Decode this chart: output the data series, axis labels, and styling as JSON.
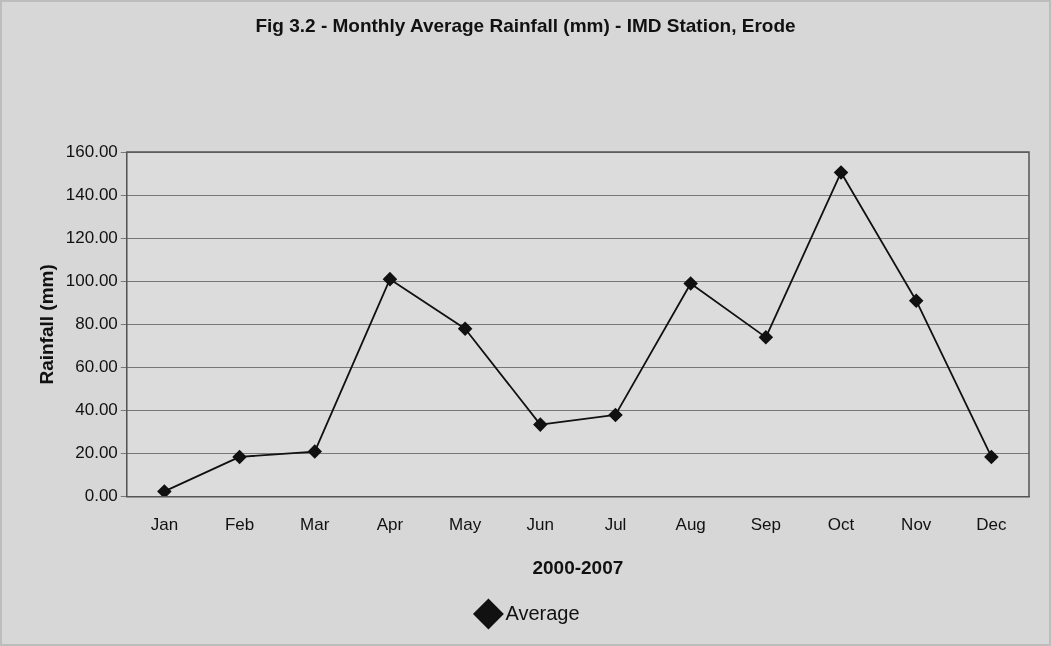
{
  "chart_data": {
    "type": "line",
    "title": "Fig 3.2 - Monthly Average Rainfall (mm) - IMD Station, Erode",
    "xlabel": "2000-2007",
    "ylabel": "Rainfall (mm)",
    "categories": [
      "Jan",
      "Feb",
      "Mar",
      "Apr",
      "May",
      "Jun",
      "Jul",
      "Aug",
      "Sep",
      "Oct",
      "Nov",
      "Dec"
    ],
    "series": [
      {
        "name": "Average",
        "color": "#111111",
        "values": [
          2.5,
          18.5,
          21,
          101,
          78,
          33.5,
          38,
          99,
          74,
          150.5,
          91,
          18.5
        ]
      }
    ],
    "ylim": [
      0,
      160
    ],
    "yticks": [
      {
        "value": 0,
        "label": "0.00"
      },
      {
        "value": 20,
        "label": "20.00"
      },
      {
        "value": 40,
        "label": "40.00"
      },
      {
        "value": 60,
        "label": "60.00"
      },
      {
        "value": 80,
        "label": "80.00"
      },
      {
        "value": 100,
        "label": "100.00"
      },
      {
        "value": 120,
        "label": "120.00"
      },
      {
        "value": 140,
        "label": "140.00"
      },
      {
        "value": 160,
        "label": "160.00"
      }
    ],
    "grid": "y",
    "legend": "bottom",
    "marker": "diamond",
    "line_style": "solid"
  }
}
